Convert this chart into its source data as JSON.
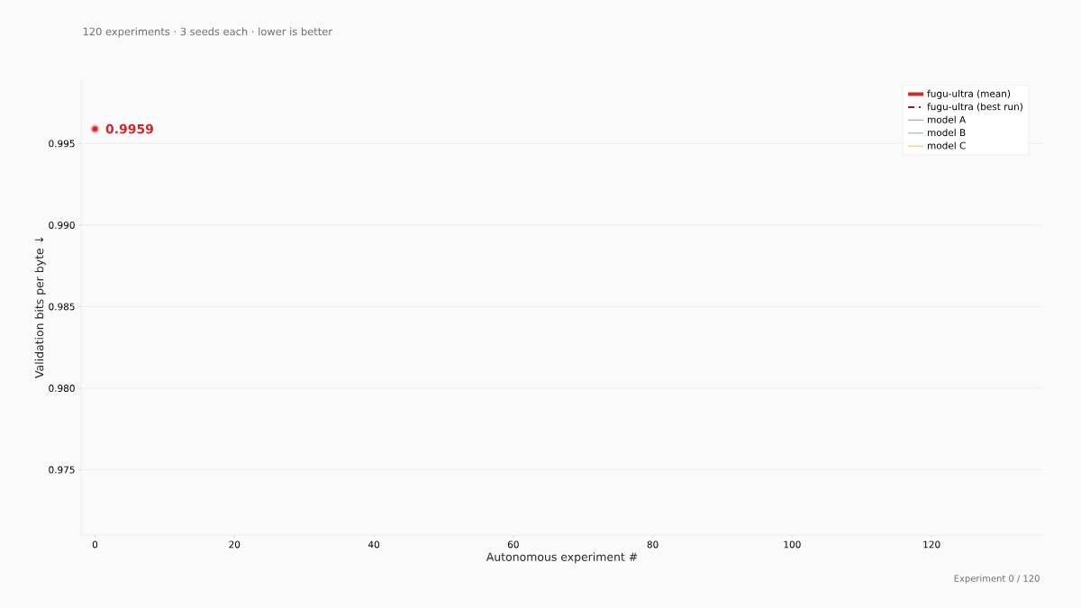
{
  "chart_data": {
    "type": "line",
    "title": "120 experiments · 3 seeds each · lower is better",
    "xlabel": "Autonomous experiment #",
    "ylabel": "Validation bits per byte  ↓",
    "x": [
      0
    ],
    "series": [
      {
        "name": "fugu-ultra (mean)",
        "color": "#d62728",
        "values": [
          0.9959
        ],
        "marker": "circle",
        "line_style": "solid"
      },
      {
        "name": "fugu-ultra (best run)",
        "color": "#8b1a1a",
        "values": [
          null
        ],
        "marker": "none",
        "line_style": "dashed"
      },
      {
        "name": "model A",
        "color": "#8fa8e0",
        "values": [
          null
        ],
        "marker": "none",
        "line_style": "solid"
      },
      {
        "name": "model B",
        "color": "#8cc7a0",
        "values": [
          null
        ],
        "marker": "none",
        "line_style": "solid"
      },
      {
        "name": "model C",
        "color": "#f3c48a",
        "values": [
          null
        ],
        "marker": "none",
        "line_style": "solid"
      }
    ],
    "xlim": [
      -2,
      136
    ],
    "xticks": [
      0,
      20,
      40,
      60,
      80,
      100,
      120
    ],
    "ylim": [
      0.971,
      0.999
    ],
    "yticks": [
      0.975,
      {
        "value": 0.98,
        "label": "0.980"
      },
      0.985,
      {
        "value": 0.99,
        "label": "0.990"
      },
      0.995
    ],
    "grid": "y",
    "legend": "top right",
    "annotations": [
      {
        "text": "0.9959",
        "x": 0,
        "y": 0.9959
      },
      "Experiment 0 / 120"
    ]
  }
}
